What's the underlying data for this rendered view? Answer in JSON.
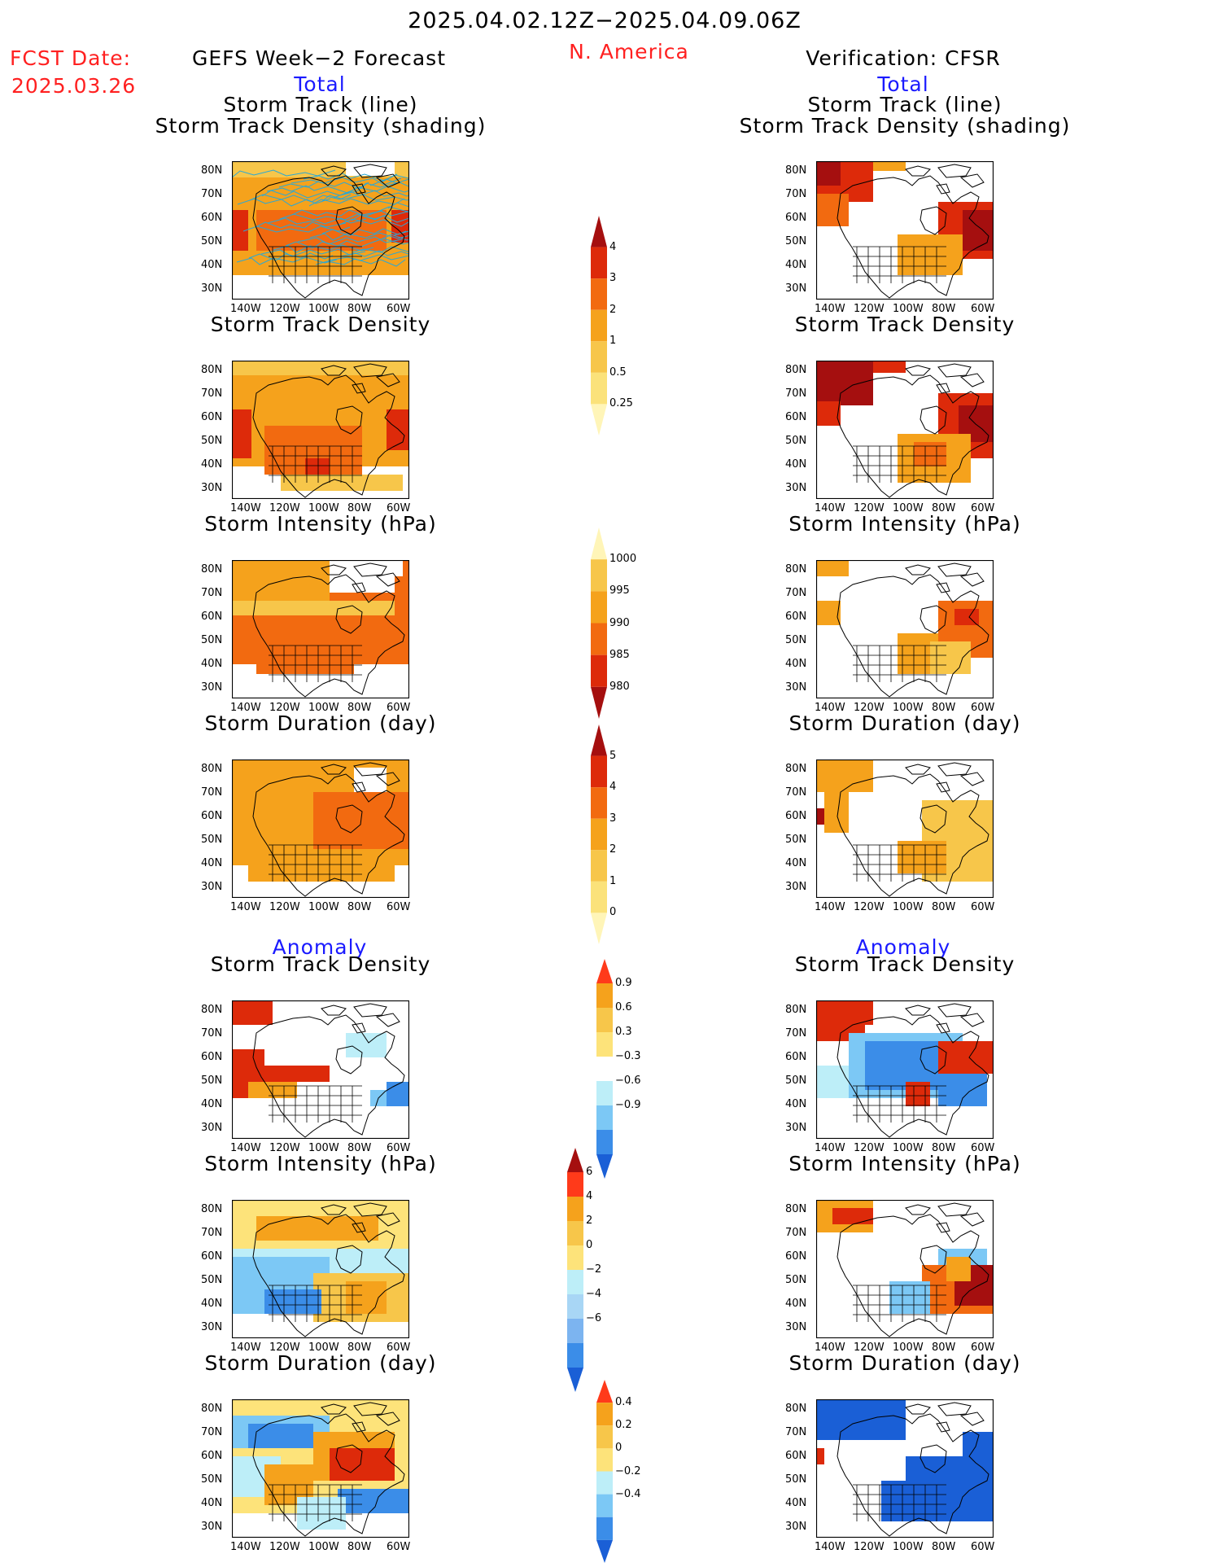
{
  "header": {
    "period": "2025.04.02.12Z−2025.04.09.06Z",
    "fcst_label": "FCST Date:",
    "fcst_date": "2025.03.26",
    "left_title": "GEFS Week−2 Forecast",
    "region": "N. America",
    "right_title": "Verification: CFSR",
    "left_total": "Total",
    "right_total": "Total",
    "left_anomaly": "Anomaly",
    "right_anomaly": "Anomaly"
  },
  "axes": {
    "lat_labels": [
      "80N",
      "70N",
      "60N",
      "50N",
      "40N",
      "30N"
    ],
    "lon_labels": [
      "140W",
      "120W",
      "100W",
      "80W",
      "60W"
    ]
  },
  "panels": {
    "track_line_1": "Storm Track (line)",
    "track_line_2": "Storm Track Density (shading)",
    "density": "Storm Track Density",
    "intensity": "Storm Intensity (hPa)",
    "duration": "Storm Duration (day)"
  },
  "colorbars": {
    "density": {
      "labels": [
        "4",
        "3",
        "2",
        "1",
        "0.5",
        "0.25"
      ],
      "colors": [
        "#a50f0f",
        "#dd2a0a",
        "#f26a10",
        "#f5a21c",
        "#f7c64a",
        "#fbe27a",
        "#fff5b8"
      ]
    },
    "intensity": {
      "labels": [
        "1000",
        "995",
        "990",
        "985",
        "980"
      ],
      "colors": [
        "#fff5b8",
        "#f7c64a",
        "#f5a21c",
        "#f26a10",
        "#dd2a0a",
        "#a50f0f"
      ]
    },
    "duration": {
      "labels": [
        "5",
        "4",
        "3",
        "2",
        "1",
        "0"
      ],
      "colors": [
        "#a50f0f",
        "#dd2a0a",
        "#f26a10",
        "#f5a21c",
        "#f7c64a",
        "#fbe27a",
        "#fff5b8"
      ]
    },
    "anom_density": {
      "labels": [
        "0.9",
        "0.6",
        "0.3",
        "−0.3",
        "−0.6",
        "−0.9"
      ],
      "colors": [
        "#ff3a1a",
        "#f5a21c",
        "#f7c64a",
        "#fde37a",
        "#ffffff",
        "#bdeef8",
        "#7cc8f5",
        "#3b8de8",
        "#1a5fd6"
      ]
    },
    "anom_intensity": {
      "labels": [
        "6",
        "4",
        "2",
        "0",
        "−2",
        "−4",
        "−6"
      ],
      "colors": [
        "#a50f0f",
        "#ff3a1a",
        "#f5a21c",
        "#f7c64a",
        "#fde37a",
        "#bdeef8",
        "#a8d6f5",
        "#7cb4f0",
        "#3b8de8",
        "#1a5fd6"
      ]
    },
    "anom_duration": {
      "labels": [
        "0.4",
        "0.2",
        "0",
        "−0.2",
        "−0.4"
      ],
      "colors": [
        "#ff3a1a",
        "#f5a21c",
        "#f7c64a",
        "#fde37a",
        "#bdeef8",
        "#7cc8f5",
        "#3b8de8",
        "#1a5fd6"
      ]
    }
  },
  "colors": {
    "ocean_box_border": "#000000",
    "track_line": "#29a8d6"
  }
}
